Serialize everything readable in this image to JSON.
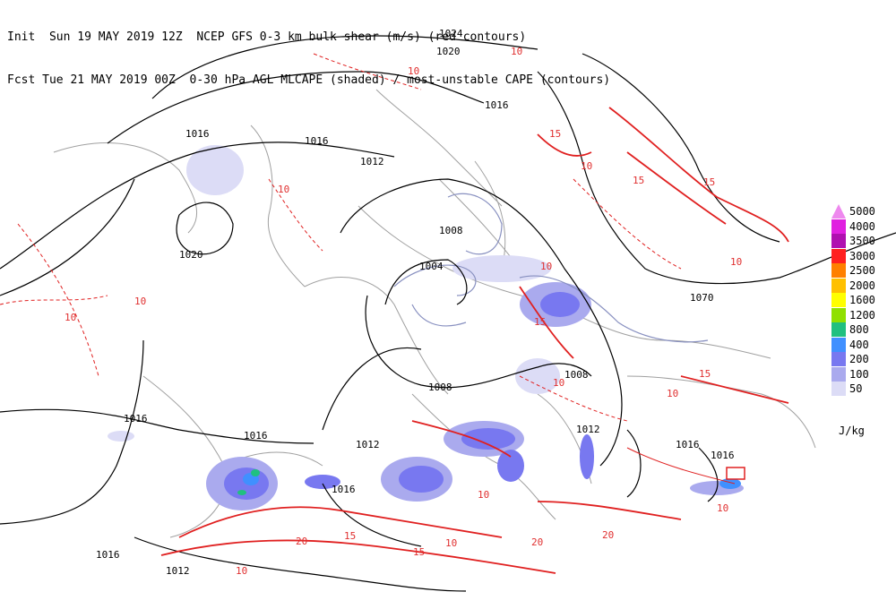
{
  "header": {
    "line1": "Init  Sun 19 MAY 2019 12Z  NCEP GFS 0-3 km bulk shear (m/s) (red contours)",
    "line2": "Fcst Tue 21 MAY 2019 00Z  0-30 hPa AGL MLCAPE (shaded) / most-unstable CAPE (contours)"
  },
  "legend": {
    "items": [
      {
        "label": "5000",
        "color": "#ee88ee"
      },
      {
        "label": "4000",
        "color": "#e020e0"
      },
      {
        "label": "3500",
        "color": "#b010b0"
      },
      {
        "label": "3000",
        "color": "#ff2020"
      },
      {
        "label": "2500",
        "color": "#ff8000"
      },
      {
        "label": "2000",
        "color": "#ffc000"
      },
      {
        "label": "1600",
        "color": "#ffff00"
      },
      {
        "label": "1200",
        "color": "#90e000"
      },
      {
        "label": "800",
        "color": "#20c080"
      },
      {
        "label": "400",
        "color": "#4090ff"
      },
      {
        "label": "200",
        "color": "#7878f0"
      },
      {
        "label": "100",
        "color": "#aaaaee"
      },
      {
        "label": "50",
        "color": "#dcdcf6"
      }
    ],
    "unit": "J/kg"
  },
  "isobar_labels": [
    "1024",
    "1020",
    "1016",
    "1016",
    "1016",
    "1012",
    "1008",
    "1004",
    "1020",
    "1070",
    "1008",
    "1008",
    "1016",
    "1012",
    "1016",
    "1012",
    "1016",
    "1016",
    "1016",
    "1012",
    "1016"
  ],
  "shear_labels": [
    "10",
    "10",
    "10",
    "10",
    "10",
    "15",
    "10",
    "15",
    "10",
    "15",
    "15",
    "10",
    "10",
    "15",
    "10",
    "20",
    "15",
    "10",
    "20",
    "15",
    "20",
    "10",
    "10",
    "10"
  ]
}
